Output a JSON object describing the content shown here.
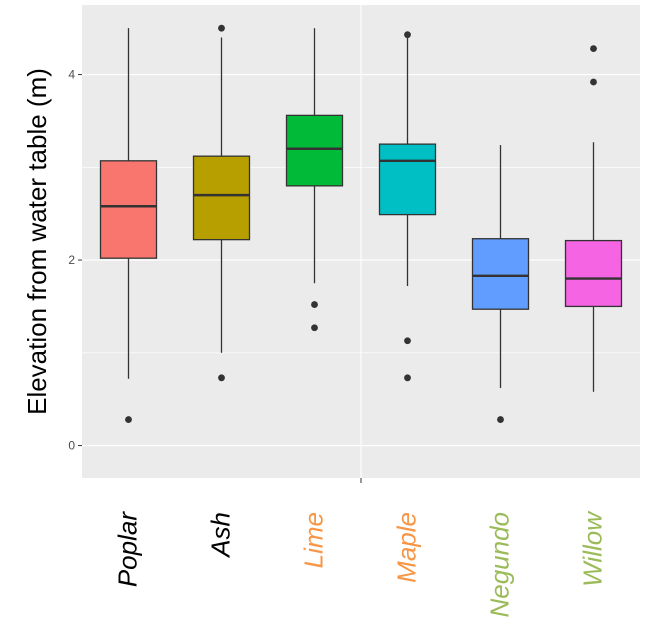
{
  "chart_data": {
    "type": "box",
    "ylabel": "Elevation from water table (m)",
    "xlabel": "",
    "ylim": [
      -0.35,
      4.75
    ],
    "yticks": [
      0,
      2,
      4
    ],
    "grid": true,
    "legend": "none",
    "categories": [
      {
        "name": "Poplar",
        "label_color": "#000000",
        "fill": "#F8766D",
        "min": 0.72,
        "q1": 2.02,
        "median": 2.58,
        "q3": 3.07,
        "max": 4.5,
        "outliers": [
          0.28
        ]
      },
      {
        "name": "Ash",
        "label_color": "#000000",
        "fill": "#B79F00",
        "min": 1.0,
        "q1": 2.22,
        "median": 2.7,
        "q3": 3.12,
        "max": 4.4,
        "outliers": [
          0.73,
          4.5
        ]
      },
      {
        "name": "Lime",
        "label_color": "#F79646",
        "fill": "#00BA38",
        "min": 1.75,
        "q1": 2.8,
        "median": 3.2,
        "q3": 3.56,
        "max": 4.5,
        "outliers": [
          1.27,
          1.52
        ]
      },
      {
        "name": "Maple",
        "label_color": "#F79646",
        "fill": "#00BFC4",
        "min": 1.72,
        "q1": 2.49,
        "median": 3.07,
        "q3": 3.25,
        "max": 4.4,
        "outliers": [
          0.73,
          1.13,
          4.43
        ]
      },
      {
        "name": "Negundo",
        "label_color": "#9BBB59",
        "fill": "#619CFF",
        "min": 0.62,
        "q1": 1.47,
        "median": 1.83,
        "q3": 2.23,
        "max": 3.24,
        "outliers": [
          0.28
        ]
      },
      {
        "name": "Willow",
        "label_color": "#9BBB59",
        "fill": "#F564E3",
        "min": 0.58,
        "q1": 1.5,
        "median": 1.8,
        "q3": 2.21,
        "max": 3.27,
        "outliers": [
          3.92,
          4.28
        ]
      }
    ]
  }
}
